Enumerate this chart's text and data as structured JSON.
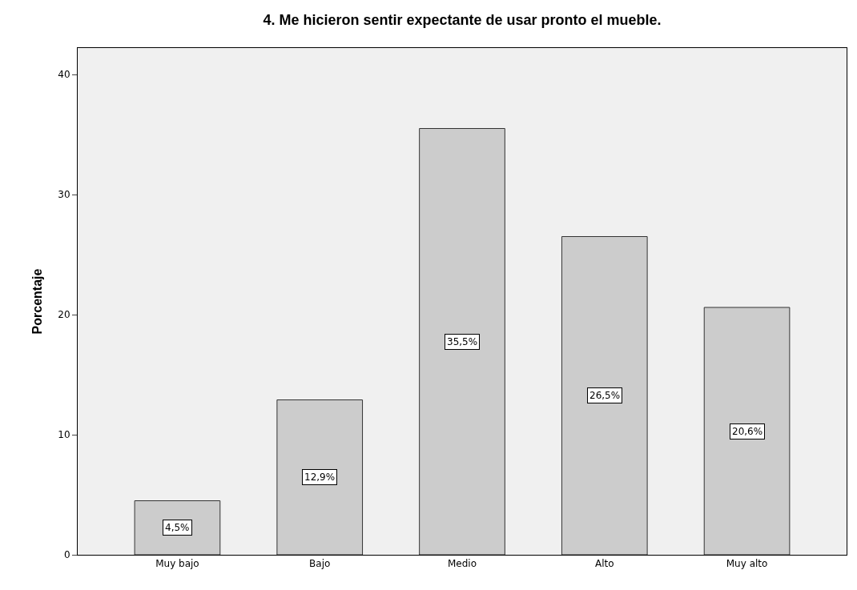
{
  "chart_data": {
    "type": "bar",
    "title": "4. Me hicieron sentir expectante de usar pronto el mueble.",
    "ylabel": "Porcentaje",
    "categories": [
      "Muy bajo",
      "Bajo",
      "Medio",
      "Alto",
      "Muy alto"
    ],
    "values": [
      4.5,
      12.9,
      35.5,
      26.5,
      20.6
    ],
    "value_labels": [
      "4,5%",
      "12,9%",
      "35,5%",
      "26,5%",
      "20,6%"
    ],
    "color": "#cccccc",
    "ylim": [
      0,
      42.2
    ],
    "yticks": [
      0,
      10,
      20,
      30,
      40
    ],
    "grid": false,
    "legend": false
  }
}
